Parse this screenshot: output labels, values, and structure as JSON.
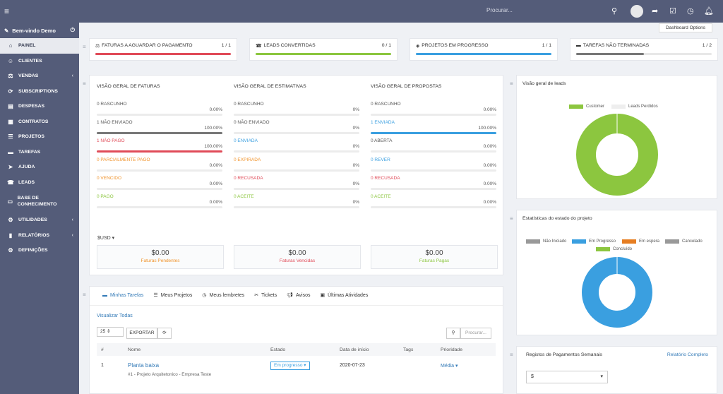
{
  "topbar": {
    "search_placeholder": "Procurar..."
  },
  "sidebar": {
    "welcome": "Bem-vindo Demo",
    "items": [
      {
        "label": "Painel",
        "icon": "home-icon",
        "active": true
      },
      {
        "label": "Clientes",
        "icon": "user-icon"
      },
      {
        "label": "Vendas",
        "icon": "balance-icon",
        "chev": "‹"
      },
      {
        "label": "Subscriptions",
        "icon": "refresh-icon"
      },
      {
        "label": "Despesas",
        "icon": "file-icon"
      },
      {
        "label": "Contratos",
        "icon": "contract-icon"
      },
      {
        "label": "Projetos",
        "icon": "bars-icon"
      },
      {
        "label": "Tarefas",
        "icon": "tasks-icon"
      },
      {
        "label": "Ajuda",
        "icon": "rocket-icon"
      },
      {
        "label": "Leads",
        "icon": "tty-icon"
      },
      {
        "label": "Base de Conhecimento",
        "icon": "folder-icon",
        "two": true
      },
      {
        "label": "Utilidades",
        "icon": "cogs-icon",
        "chev": "‹"
      },
      {
        "label": "Relatórios",
        "icon": "chart-icon",
        "chev": "‹"
      },
      {
        "label": "Definições",
        "icon": "gear-icon"
      }
    ]
  },
  "dashboard_options": "Dashboard Options",
  "stats": [
    {
      "title": "Faturas a aguardar o pagamento",
      "count": "1 / 1",
      "color": "#e04b58",
      "fill": 1.0,
      "icon": "balance-icon"
    },
    {
      "title": "Leads convertidas",
      "count": "0 / 1",
      "color": "#8cc63f",
      "fill": 1.0,
      "icon": "tty-icon"
    },
    {
      "title": "Projetos em progresso",
      "count": "1 / 1",
      "color": "#3a9fe0",
      "fill": 1.0,
      "icon": "cubes-icon"
    },
    {
      "title": "Tarefas não terminadas",
      "count": "1 / 2",
      "color": "#777777",
      "fill": 0.5,
      "icon": "tasks-icon"
    }
  ],
  "overview": {
    "columns": [
      {
        "title": "Visão geral de faturas",
        "rows": [
          {
            "label": "0 Rascunho",
            "pct": "0.00%",
            "color": "#555",
            "fill": 0,
            "bar": "#ececec"
          },
          {
            "label": "1 Não enviado",
            "pct": "100.00%",
            "color": "#555",
            "fill": 1,
            "bar": "#777"
          },
          {
            "label": "1 Não pago",
            "pct": "100.00%",
            "color": "#e04b58",
            "fill": 1,
            "bar": "#e04b58"
          },
          {
            "label": "0 Parcialmente pago",
            "pct": "0.00%",
            "color": "#f0932b",
            "fill": 0,
            "bar": "#ececec"
          },
          {
            "label": "0 Vencido",
            "pct": "0.00%",
            "color": "#f0932b",
            "fill": 0,
            "bar": "#ececec"
          },
          {
            "label": "0 Pago",
            "pct": "0.00%",
            "color": "#8cc63f",
            "fill": 0,
            "bar": "#ececec"
          }
        ],
        "summary_value": "$0.00",
        "summary_label": "Faturas Pendentes",
        "summary_color": "#f0932b"
      },
      {
        "title": "Visão geral de estimativas",
        "rows": [
          {
            "label": "0 Rascunho",
            "pct": "0%",
            "color": "#555",
            "fill": 0,
            "bar": "#ececec"
          },
          {
            "label": "0 Não enviado",
            "pct": "0%",
            "color": "#555",
            "fill": 0,
            "bar": "#ececec"
          },
          {
            "label": "0 Enviada",
            "pct": "0%",
            "color": "#3a9fe0",
            "fill": 0,
            "bar": "#ececec"
          },
          {
            "label": "0 Expirada",
            "pct": "0%",
            "color": "#f0932b",
            "fill": 0,
            "bar": "#ececec"
          },
          {
            "label": "0 Recusada",
            "pct": "0%",
            "color": "#e04b58",
            "fill": 0,
            "bar": "#ececec"
          },
          {
            "label": "0 Aceite",
            "pct": "0%",
            "color": "#8cc63f",
            "fill": 0,
            "bar": "#ececec"
          }
        ],
        "summary_value": "$0.00",
        "summary_label": "Faturas Vencidas",
        "summary_color": "#e04b58"
      },
      {
        "title": "Visão geral de propostas",
        "rows": [
          {
            "label": "0 Rascunho",
            "pct": "0.00%",
            "color": "#555",
            "fill": 0,
            "bar": "#ececec"
          },
          {
            "label": "1 Enviada",
            "pct": "100.00%",
            "color": "#3a9fe0",
            "fill": 1,
            "bar": "#3a9fe0"
          },
          {
            "label": "0 Aberta",
            "pct": "0.00%",
            "color": "#555",
            "fill": 0,
            "bar": "#ececec"
          },
          {
            "label": "0 Rever",
            "pct": "0.00%",
            "color": "#3a9fe0",
            "fill": 0,
            "bar": "#ececec"
          },
          {
            "label": "0 Recusada",
            "pct": "0.00%",
            "color": "#e04b58",
            "fill": 0,
            "bar": "#ececec"
          },
          {
            "label": "0 Aceite",
            "pct": "0.00%",
            "color": "#8cc63f",
            "fill": 0,
            "bar": "#ececec"
          }
        ],
        "summary_value": "$0.00",
        "summary_label": "Faturas Pagas",
        "summary_color": "#8cc63f"
      }
    ],
    "currency": "$USD"
  },
  "tasks": {
    "tabs": [
      "Minhas Tarefas",
      "Meus Projetos",
      "Meus lembretes",
      "Tickets",
      "Avisos",
      "Últimas Atividades"
    ],
    "view_all": "Visualizar Todas",
    "page_size": "25",
    "export": "EXPORTAR",
    "search_placeholder": "Procurar...",
    "headers": [
      "#",
      "Nome",
      "Estado",
      "Data de início",
      "Tags",
      "Prioridade"
    ],
    "rows": [
      {
        "id": "1",
        "name": "Planta baixa",
        "sub": "#1 - Projeto Arquitetonico - Empresa Teste",
        "status": "Em progresso",
        "date": "2020-07-23",
        "tags": "",
        "priority": "Média"
      }
    ]
  },
  "leads_overview": {
    "title": "Visão geral de leads",
    "legend": [
      "Customer",
      "Leads Perdidos"
    ]
  },
  "project_status": {
    "title": "Estatísticas do estado do projeto",
    "legend": [
      "Não Iniciado",
      "Em Progresso",
      "Em espera",
      "Cancelado",
      "Concluído"
    ]
  },
  "payments": {
    "title": "Registos de Pagamentos Semanais",
    "link": "Relatório Completo",
    "currency": "$"
  },
  "colors": {
    "green": "#8cc63f",
    "blue": "#3a9fe0",
    "orange": "#e67e22",
    "grey": "#999999",
    "red": "#e04b58"
  },
  "chart_data": [
    {
      "type": "pie",
      "title": "Visão geral de leads",
      "categories": [
        "Customer",
        "Leads Perdidos"
      ],
      "values": [
        1,
        0
      ]
    },
    {
      "type": "pie",
      "title": "Estatísticas do estado do projeto",
      "categories": [
        "Não Iniciado",
        "Em Progresso",
        "Em espera",
        "Cancelado",
        "Concluído"
      ],
      "values": [
        0,
        1,
        0,
        0,
        0
      ]
    }
  ]
}
